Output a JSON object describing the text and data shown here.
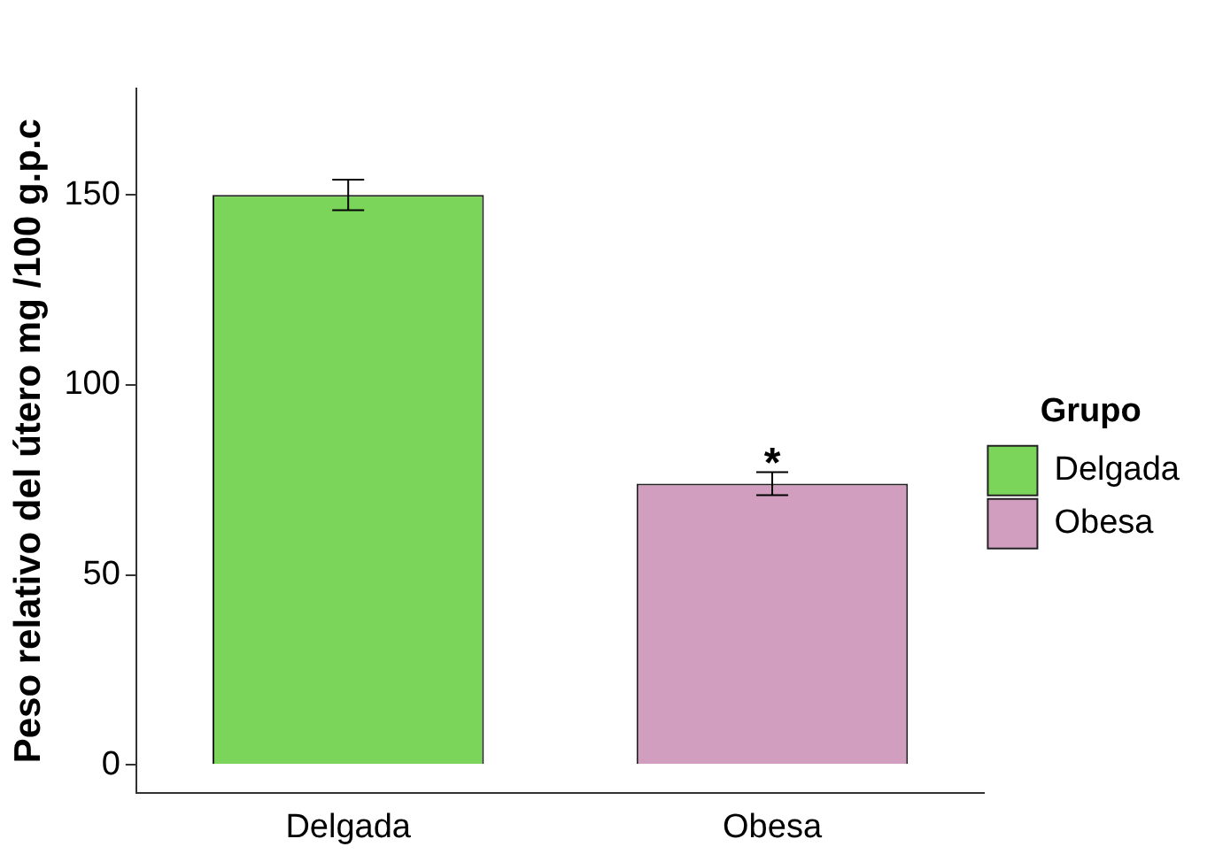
{
  "chart_data": {
    "type": "bar",
    "ylabel": "Peso relativo del útero mg /100 g.p.c",
    "legend_title": "Grupo",
    "categories": [
      "Delgada",
      "Obesa"
    ],
    "series": [
      {
        "name": "Delgada",
        "color": "#7bd55a",
        "values": [
          150,
          null
        ],
        "errors": [
          4,
          null
        ]
      },
      {
        "name": "Obesa",
        "color": "#d29ebf",
        "values": [
          null,
          74
        ],
        "errors": [
          null,
          3
        ]
      }
    ],
    "ylim": [
      -7.5,
      178
    ],
    "yticks": [
      0,
      50,
      100,
      150
    ],
    "grid": false,
    "legend": "right",
    "annotations": [
      {
        "text": "*",
        "x": "Obesa",
        "y": 77
      }
    ]
  }
}
